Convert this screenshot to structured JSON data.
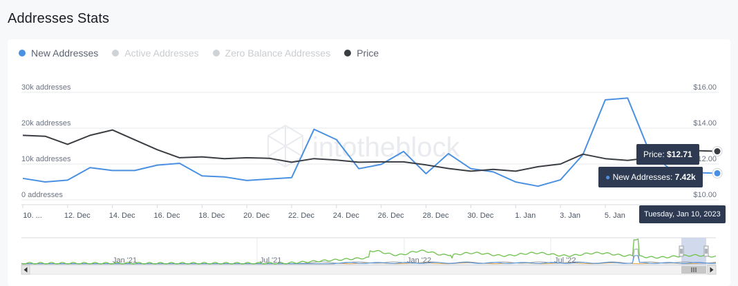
{
  "page": {
    "title": "Addresses Stats"
  },
  "watermark": "intotheblock",
  "legend": [
    {
      "label": "New Addresses",
      "color": "#4a90e2",
      "active": true
    },
    {
      "label": "Active Addresses",
      "color": "#cfd2d6",
      "active": false
    },
    {
      "label": "Zero Balance Addresses",
      "color": "#cfd2d6",
      "active": false
    },
    {
      "label": "Price",
      "color": "#3a3d42",
      "active": true
    }
  ],
  "tooltip": {
    "price_label": "Price:",
    "price_value": "$12.71",
    "new_label": "New Addresses:",
    "new_value": "7.42k",
    "date": "Tuesday, Jan 10, 2023"
  },
  "navigator": {
    "labels": [
      "Jan '21",
      "Jul '21",
      "Jan '22",
      "Jul '22"
    ]
  },
  "chart_data": {
    "type": "line",
    "x_ticks": [
      "10. ...",
      "12. Dec",
      "14. Dec",
      "16. Dec",
      "18. Dec",
      "20. Dec",
      "22. Dec",
      "24. Dec",
      "26. Dec",
      "28. Dec",
      "30. Dec",
      "1. Jan",
      "3. Jan",
      "5. Jan"
    ],
    "x": [
      "Dec 10",
      "Dec 11",
      "Dec 12",
      "Dec 13",
      "Dec 14",
      "Dec 15",
      "Dec 16",
      "Dec 17",
      "Dec 18",
      "Dec 19",
      "Dec 20",
      "Dec 21",
      "Dec 22",
      "Dec 23",
      "Dec 24",
      "Dec 25",
      "Dec 26",
      "Dec 27",
      "Dec 28",
      "Dec 29",
      "Dec 30",
      "Dec 31",
      "Jan 1",
      "Jan 2",
      "Jan 3",
      "Jan 4",
      "Jan 5",
      "Jan 6",
      "Jan 7",
      "Jan 8",
      "Jan 9",
      "Jan 10"
    ],
    "y_left": {
      "label_ticks": [
        "0 addresses",
        "10k addresses",
        "20k addresses",
        "30k addresses"
      ],
      "ylim": [
        0,
        30000
      ]
    },
    "y_right": {
      "label_ticks": [
        "$10.00",
        "$12.00",
        "$14.00",
        "$16.00"
      ],
      "ylim": [
        10,
        16
      ]
    },
    "series": [
      {
        "name": "New Addresses",
        "axis": "left",
        "color": "#4a90e2",
        "values": [
          6000,
          5000,
          5500,
          9000,
          8200,
          8200,
          9700,
          10200,
          6700,
          6400,
          5400,
          5800,
          6200,
          19700,
          16800,
          8700,
          9900,
          13500,
          7300,
          12900,
          8700,
          7800,
          5000,
          3800,
          5600,
          12600,
          27900,
          28400,
          13000,
          8100,
          7600,
          7420
        ]
      },
      {
        "name": "Price",
        "axis": "right",
        "color": "#3a3d42",
        "values": [
          13.6,
          13.55,
          13.1,
          13.6,
          13.9,
          13.35,
          12.8,
          12.35,
          12.4,
          12.3,
          12.35,
          12.32,
          12.1,
          12.3,
          12.22,
          12.1,
          12.12,
          12.12,
          11.95,
          11.75,
          11.6,
          11.7,
          11.6,
          11.85,
          12.0,
          12.55,
          12.3,
          12.2,
          12.35,
          12.6,
          12.75,
          12.71
        ]
      }
    ],
    "grid": true,
    "tooltip_point": "Jan 10"
  }
}
